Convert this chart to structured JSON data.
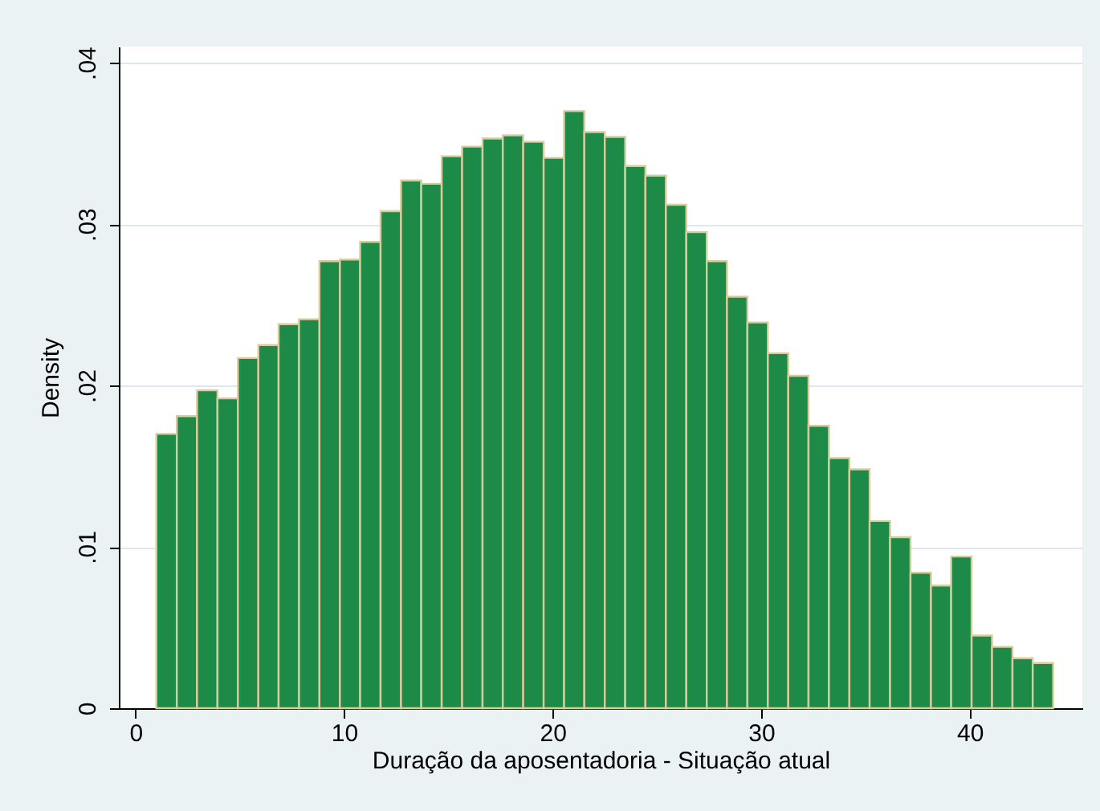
{
  "chart_data": {
    "type": "histogram",
    "xlabel": "Duração da aposentadoria - Situação atual",
    "ylabel": "Density",
    "color": "#1e8a48",
    "bins": [
      1,
      1.98,
      2.95,
      3.93,
      4.91,
      5.89,
      6.86,
      7.84,
      8.82,
      9.8,
      10.77,
      11.75,
      12.73,
      13.7,
      14.68,
      15.66,
      16.64,
      17.61,
      18.59,
      19.57,
      20.55,
      21.52,
      22.5,
      23.48,
      24.45,
      25.43,
      26.41,
      27.39,
      28.36,
      29.34,
      30.32,
      31.3,
      32.27,
      33.25,
      34.23,
      35.2,
      36.18,
      37.16,
      38.14,
      39.11,
      40.09,
      41.07,
      42.05,
      43.02,
      44
    ],
    "values": [
      0.017,
      0.0181,
      0.0197,
      0.0192,
      0.0217,
      0.0225,
      0.0238,
      0.0241,
      0.0277,
      0.0278,
      0.0289,
      0.0308,
      0.0327,
      0.0325,
      0.0342,
      0.0348,
      0.0353,
      0.0355,
      0.0351,
      0.0341,
      0.037,
      0.0357,
      0.0354,
      0.0336,
      0.033,
      0.0312,
      0.0295,
      0.0277,
      0.0255,
      0.0239,
      0.022,
      0.0206,
      0.0175,
      0.0155,
      0.0148,
      0.0116,
      0.0106,
      0.0084,
      0.0076,
      0.0094,
      0.0045,
      0.0038,
      0.0031,
      0.0028
    ],
    "xlim": [
      -0.8,
      45.4
    ],
    "xticks": [
      0,
      10,
      20,
      30,
      40
    ],
    "ylim": [
      0,
      0.041
    ],
    "yticks": [
      0,
      {
        "value": 0.01,
        "label": ".01"
      },
      {
        "value": 0.02,
        "label": ".02"
      },
      {
        "value": 0.03,
        "label": ".03"
      },
      {
        "value": 0.04,
        "label": ".04"
      }
    ],
    "grid": "y"
  }
}
